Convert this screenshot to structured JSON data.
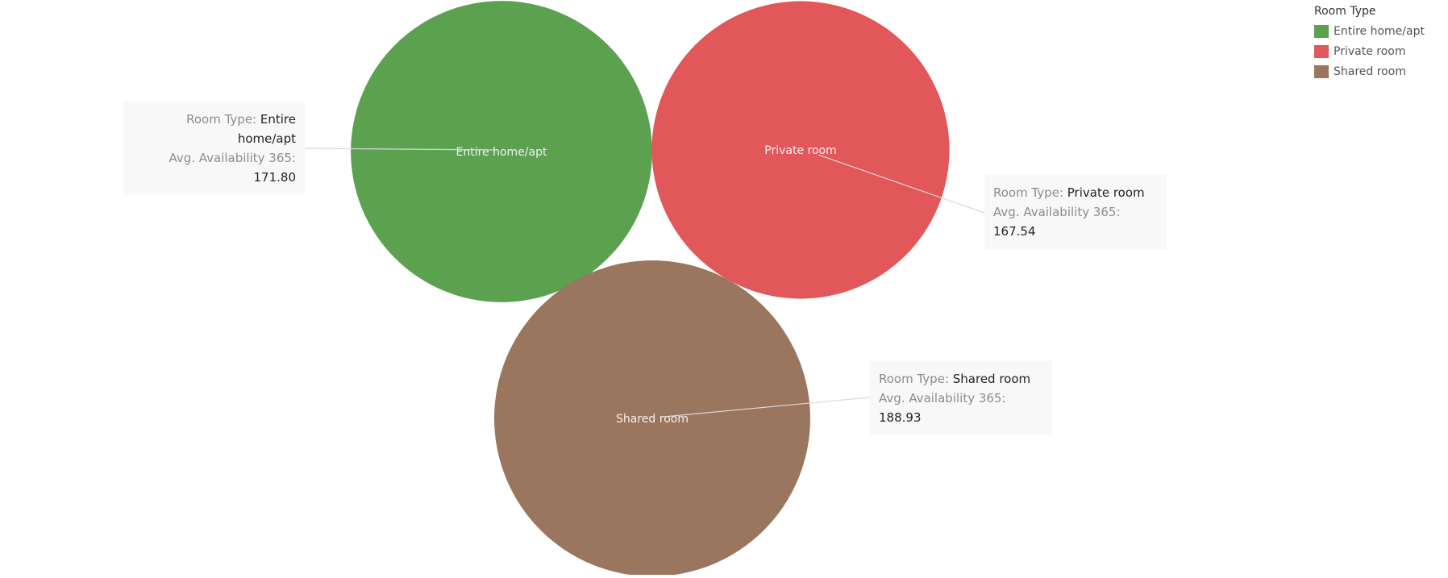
{
  "chart_data": {
    "type": "bubble",
    "legend": {
      "title": "Room Type",
      "placement": "top-right"
    },
    "measure_label": "Avg. Availability 365",
    "dimension_label": "Room Type",
    "bubbles": [
      {
        "category": "Entire home/apt",
        "value": 171.8,
        "value_text": "171.80",
        "color": "#5ba150"
      },
      {
        "category": "Private room",
        "value": 167.54,
        "value_text": "167.54",
        "color": "#e1575a"
      },
      {
        "category": "Shared room",
        "value": 188.93,
        "value_text": "188.93",
        "color": "#9b765f"
      }
    ]
  }
}
